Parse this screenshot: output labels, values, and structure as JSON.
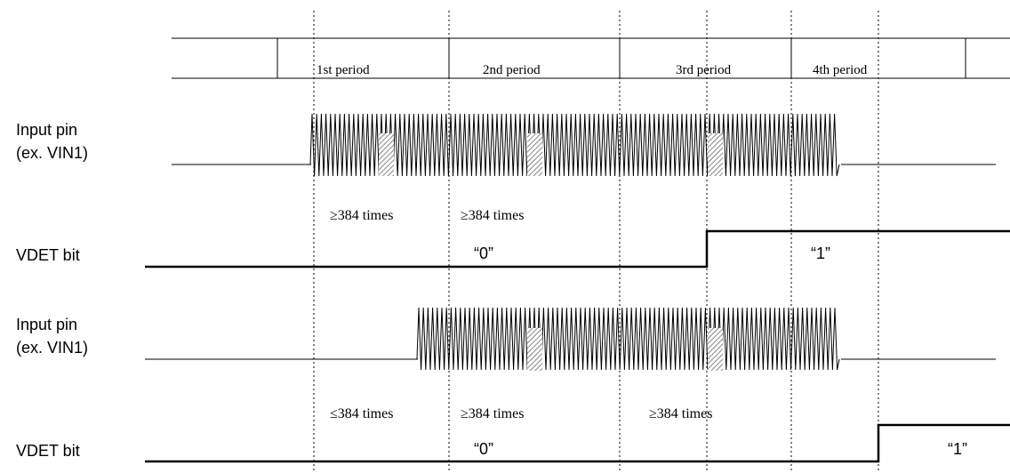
{
  "periods": [
    "1st period",
    "2nd period",
    "3rd period",
    "4th period"
  ],
  "signals": {
    "input1": {
      "line1": "Input pin",
      "line2": "(ex. VIN1)"
    },
    "vdet1": {
      "label": "VDET bit",
      "value0": "“0”",
      "value1": "“1”"
    },
    "input2": {
      "line1": "Input pin",
      "line2": "(ex. VIN1)"
    },
    "vdet2": {
      "label": "VDET bit",
      "value0": "“0”",
      "value1": "“1”"
    }
  },
  "counts_case1": [
    "≥384 times",
    "≥384 times"
  ],
  "counts_case2": [
    "≤384 times",
    "≥384 times",
    "≥384 times"
  ]
}
